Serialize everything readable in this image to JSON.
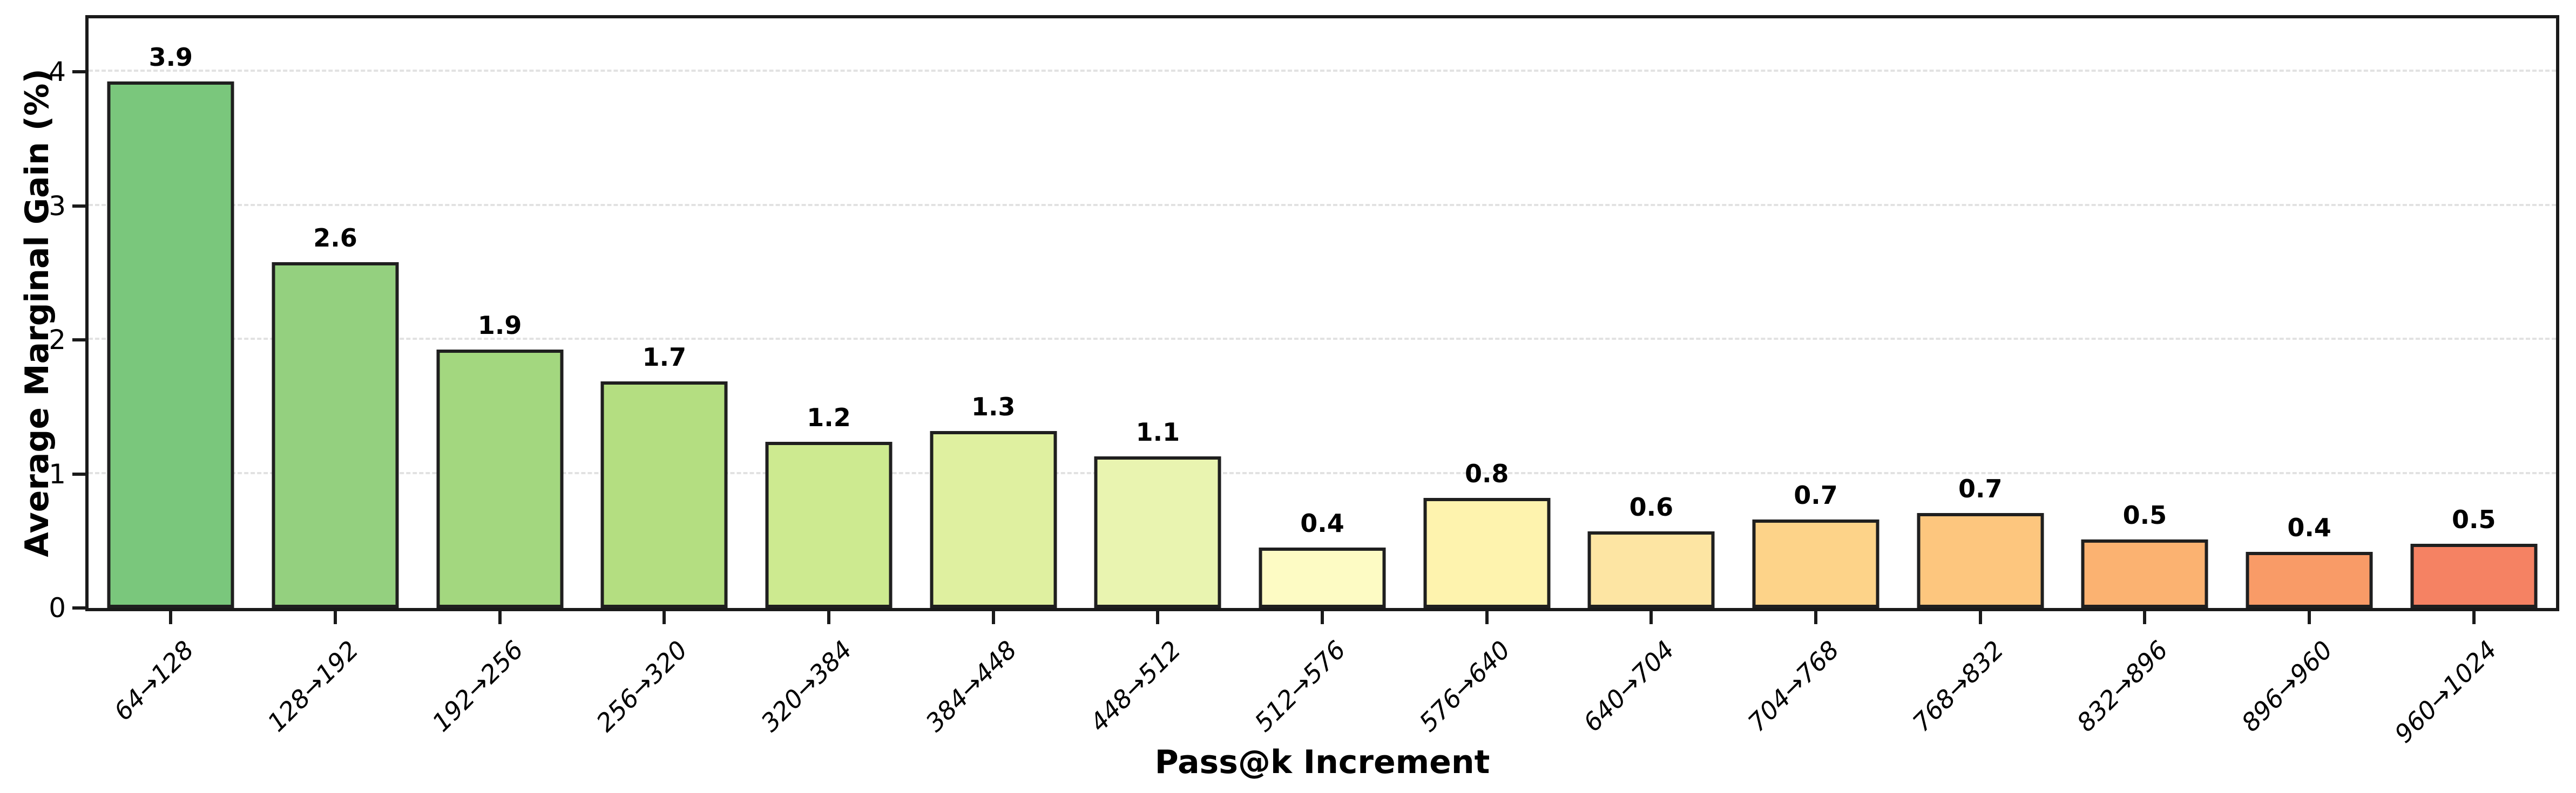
{
  "chart_data": {
    "type": "bar",
    "title": "",
    "xlabel": "Pass@k Increment",
    "ylabel": "Average Marginal Gain (%)",
    "categories": [
      "64→128",
      "128→192",
      "192→256",
      "256→320",
      "320→384",
      "384→448",
      "448→512",
      "512→576",
      "576→640",
      "640→704",
      "704→768",
      "768→832",
      "832→896",
      "896→960",
      "960→1024"
    ],
    "values": [
      3.9,
      2.6,
      1.9,
      1.7,
      1.2,
      1.3,
      1.1,
      0.4,
      0.8,
      0.6,
      0.7,
      0.7,
      0.5,
      0.4,
      0.5
    ],
    "value_labels": [
      "3.9",
      "2.6",
      "1.9",
      "1.7",
      "1.2",
      "1.3",
      "1.1",
      "0.4",
      "0.8",
      "0.6",
      "0.7",
      "0.7",
      "0.5",
      "0.4",
      "0.5"
    ],
    "bar_heights_precise": [
      3.93,
      2.58,
      1.93,
      1.69,
      1.24,
      1.32,
      1.13,
      0.45,
      0.82,
      0.57,
      0.66,
      0.71,
      0.51,
      0.42,
      0.48
    ],
    "bar_colors": [
      "#7ac77c",
      "#94d07f",
      "#a3d77f",
      "#b4de81",
      "#cdea90",
      "#dff0a0",
      "#e9f4b0",
      "#fdfbc4",
      "#fef3ae",
      "#fde5a3",
      "#fdd389",
      "#fdc67e",
      "#fbb271",
      "#f99b67",
      "#f58263"
    ],
    "ylim": [
      0,
      4.4
    ],
    "yticks": [
      "0",
      "1",
      "2",
      "3",
      "4"
    ],
    "grid": "horizontal-dashed",
    "legend": "none",
    "colors": {
      "bar_edge": "#1f1f1f",
      "axis_spine": "#1a1a1a",
      "grid": "#e2e2e2",
      "text": "#000000",
      "background": "#ffffff"
    }
  }
}
